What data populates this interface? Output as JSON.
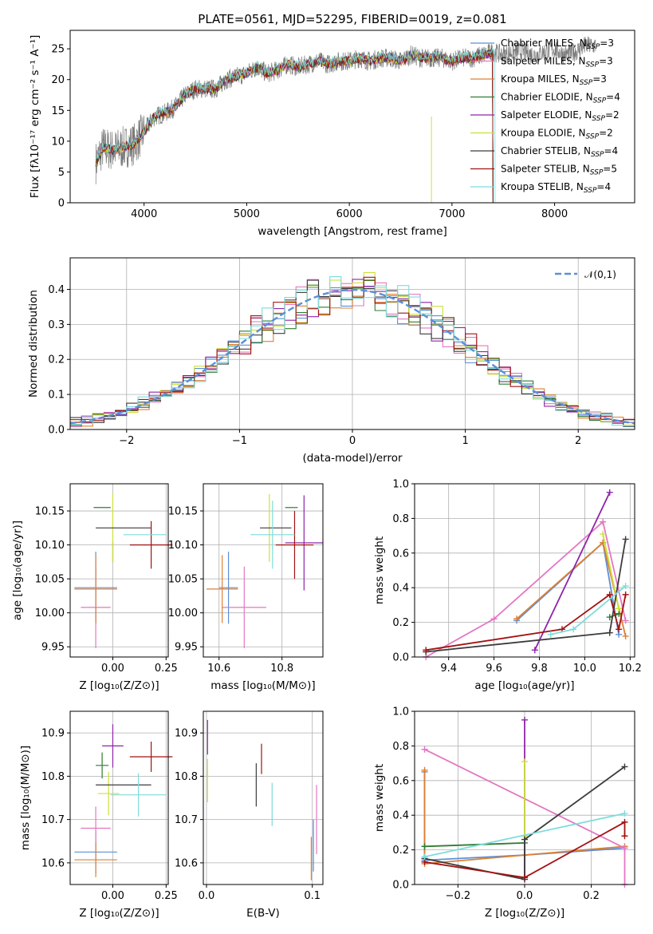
{
  "chart_data": [
    {
      "type": "line",
      "title": "PLATE=0561, MJD=52295, FIBERID=0019, z=0.081",
      "xlabel": "wavelength [Angstrom, rest frame]",
      "ylabel": "Flux [fλ10⁻¹⁷ erg cm⁻² s⁻¹ A⁻¹]",
      "xlim": [
        3280,
        8780
      ],
      "ylim": [
        0,
        28
      ],
      "xticks": [
        4000,
        5000,
        6000,
        7000,
        8000
      ],
      "yticks": [
        0,
        5,
        10,
        15,
        20,
        25
      ],
      "grid": false,
      "legend_position": "upper-right",
      "spectrum": {
        "x": [
          3530,
          3600,
          3700,
          3800,
          3900,
          4000,
          4100,
          4200,
          4300,
          4400,
          4500,
          4600,
          4700,
          4800,
          4900,
          5000,
          5100,
          5200,
          5300,
          5400,
          5500,
          5600,
          5700,
          5800,
          5900,
          6000,
          6100,
          6200,
          6300,
          6400,
          6500,
          6600,
          6700,
          6800,
          6900,
          7000,
          7100,
          7200,
          7300,
          7400,
          7500,
          7600,
          7700,
          7800,
          7900,
          8000,
          8100,
          8200,
          8300,
          8400
        ],
        "y": [
          6.5,
          9.0,
          8.5,
          9.0,
          9.5,
          11.5,
          14.0,
          14.5,
          15.5,
          17.5,
          18.5,
          18.5,
          18.5,
          20.0,
          20.5,
          21.0,
          22.0,
          21.0,
          21.5,
          22.5,
          22.0,
          22.5,
          23.0,
          22.5,
          23.0,
          23.0,
          23.5,
          23.0,
          23.5,
          23.5,
          23.0,
          24.0,
          23.5,
          23.5,
          23.5,
          23.0,
          23.5,
          23.5,
          24.0,
          24.5,
          24.0,
          24.5,
          24.5,
          24.0,
          24.5,
          25.0,
          24.0,
          24.5,
          25.5,
          25.5
        ]
      },
      "series": [
        {
          "name": "Chabrier MILES",
          "n_ssp": 3,
          "color": "#5b8fd8"
        },
        {
          "name": "Salpeter MILES",
          "n_ssp": 3,
          "color": "#e377c2"
        },
        {
          "name": "Kroupa MILES",
          "n_ssp": 3,
          "color": "#dd8033"
        },
        {
          "name": "Chabrier ELODIE",
          "n_ssp": 4,
          "color": "#2e7d32"
        },
        {
          "name": "Salpeter ELODIE",
          "n_ssp": 2,
          "color": "#8e24aa"
        },
        {
          "name": "Kroupa ELODIE",
          "n_ssp": 2,
          "color": "#cde03a"
        },
        {
          "name": "Chabrier STELIB",
          "n_ssp": 4,
          "color": "#3c3c3c"
        },
        {
          "name": "Salpeter STELIB",
          "n_ssp": 5,
          "color": "#a31212"
        },
        {
          "name": "Kroupa STELIB",
          "n_ssp": 4,
          "color": "#7fdcdc"
        }
      ],
      "legend_template": {
        "prefix": ", N",
        "sub": "SSP",
        "eq": "="
      }
    },
    {
      "type": "line",
      "xlabel": "(data-model)/error",
      "ylabel": "Normed distribution",
      "xlim": [
        -2.5,
        2.5
      ],
      "ylim": [
        0,
        0.49
      ],
      "xticks": [
        -2,
        -1,
        0,
        1,
        2
      ],
      "yticks": [
        0.0,
        0.1,
        0.2,
        0.3,
        0.4
      ],
      "grid": true,
      "legend_position": "upper-right",
      "reference_curve": {
        "name": "𝒩(0,1)",
        "mean": 0,
        "sigma": 1,
        "color": "#5b8fd8",
        "style": "dashed"
      }
    },
    {
      "type": "scatter",
      "xlabel": "Z [log₁₀(Z/Z⊙)]",
      "ylabel": "age  [log₁₀(age/yr)]",
      "xlim": [
        -0.2,
        0.26
      ],
      "ylim": [
        9.935,
        10.19
      ],
      "xticks": [
        0.0,
        0.25
      ],
      "yticks": [
        9.95,
        10.0,
        10.05,
        10.1,
        10.15
      ],
      "grid": true,
      "points": [
        {
          "series": "Chabrier MILES",
          "x": -0.08,
          "xerr": 0.1,
          "y": 10.037,
          "yerr": 0.053
        },
        {
          "series": "Salpeter MILES",
          "x": -0.08,
          "xerr": 0.07,
          "y": 10.008,
          "yerr": 0.06
        },
        {
          "series": "Kroupa MILES",
          "x": -0.08,
          "xerr": 0.1,
          "y": 10.035,
          "yerr": 0.05
        },
        {
          "series": "Chabrier ELODIE",
          "x": -0.05,
          "xerr": 0.04,
          "y": 10.155,
          "yerr": 0.0
        },
        {
          "series": "Salpeter ELODIE",
          "x": 0.0,
          "xerr": 0.0,
          "y": 10.09,
          "yerr": 0.015
        },
        {
          "series": "Kroupa ELODIE",
          "x": 0.0,
          "xerr": 0.0,
          "y": 10.125,
          "yerr": 0.05
        },
        {
          "series": "Chabrier STELIB",
          "x": 0.05,
          "xerr": 0.13,
          "y": 10.125,
          "yerr": 0.0
        },
        {
          "series": "Salpeter STELIB",
          "x": 0.18,
          "xerr": 0.1,
          "y": 10.1,
          "yerr": 0.035
        },
        {
          "series": "Kroupa STELIB",
          "x": 0.15,
          "xerr": 0.1,
          "y": 10.115,
          "yerr": 0.0
        }
      ]
    },
    {
      "type": "scatter",
      "xlabel": "mass [log₁₀(M/M⊙)]",
      "ylabel": "",
      "xlim": [
        10.55,
        10.93
      ],
      "ylim": [
        9.935,
        10.19
      ],
      "xticks": [
        10.6,
        10.8
      ],
      "yticks": [
        9.95,
        10.0,
        10.05,
        10.1,
        10.15
      ],
      "grid": true,
      "points": [
        {
          "series": "Chabrier MILES",
          "x": 10.63,
          "xerr": 0.03,
          "y": 10.037,
          "yerr": 0.053
        },
        {
          "series": "Salpeter MILES",
          "x": 10.68,
          "xerr": 0.07,
          "y": 10.008,
          "yerr": 0.06
        },
        {
          "series": "Kroupa MILES",
          "x": 10.61,
          "xerr": 0.05,
          "y": 10.035,
          "yerr": 0.05
        },
        {
          "series": "Chabrier ELODIE",
          "x": 10.83,
          "xerr": 0.02,
          "y": 10.155,
          "yerr": 0.0
        },
        {
          "series": "Salpeter ELODIE",
          "x": 10.87,
          "xerr": 0.06,
          "y": 10.103,
          "yerr": 0.07
        },
        {
          "series": "Kroupa ELODIE",
          "x": 10.76,
          "xerr": 0.0,
          "y": 10.125,
          "yerr": 0.05
        },
        {
          "series": "Chabrier STELIB",
          "x": 10.78,
          "xerr": 0.05,
          "y": 10.125,
          "yerr": 0.0
        },
        {
          "series": "Salpeter STELIB",
          "x": 10.84,
          "xerr": 0.06,
          "y": 10.1,
          "yerr": 0.05
        },
        {
          "series": "Kroupa STELIB",
          "x": 10.77,
          "xerr": 0.07,
          "y": 10.115,
          "yerr": 0.05
        }
      ]
    },
    {
      "type": "line",
      "xlabel": "age  [log₁₀(age/yr)]",
      "ylabel": "mass weight",
      "xlim": [
        9.25,
        10.22
      ],
      "ylim": [
        0.0,
        1.0
      ],
      "xticks": [
        9.4,
        9.6,
        9.8,
        10.0,
        10.2
      ],
      "yticks": [
        0.0,
        0.2,
        0.4,
        0.6,
        0.8,
        1.0
      ],
      "grid": true,
      "series": [
        {
          "name": "Chabrier MILES",
          "x": [
            9.7,
            10.08,
            10.15
          ],
          "y": [
            0.21,
            0.66,
            0.13
          ]
        },
        {
          "name": "Kroupa MILES",
          "x": [
            9.7,
            10.08,
            10.18
          ],
          "y": [
            0.22,
            0.66,
            0.12
          ]
        },
        {
          "name": "Salpeter MILES",
          "x": [
            9.3,
            9.6,
            10.08,
            10.18
          ],
          "y": [
            0.0,
            0.22,
            0.78,
            0.21
          ]
        },
        {
          "name": "Chabrier ELODIE",
          "x": [
            10.11,
            10.15
          ],
          "y": [
            0.23,
            0.25
          ]
        },
        {
          "name": "Salpeter ELODIE",
          "x": [
            9.78,
            10.11
          ],
          "y": [
            0.04,
            0.95
          ]
        },
        {
          "name": "Kroupa ELODIE",
          "x": [
            10.08,
            10.15
          ],
          "y": [
            0.71,
            0.28
          ]
        },
        {
          "name": "Chabrier STELIB",
          "x": [
            9.3,
            10.11,
            10.18
          ],
          "y": [
            0.03,
            0.14,
            0.68
          ]
        },
        {
          "name": "Salpeter STELIB",
          "x": [
            9.3,
            9.9,
            10.11,
            10.15,
            10.18
          ],
          "y": [
            0.04,
            0.16,
            0.36,
            0.16,
            0.36
          ]
        },
        {
          "name": "Kroupa STELIB",
          "x": [
            9.85,
            9.95,
            10.18
          ],
          "y": [
            0.13,
            0.16,
            0.41
          ]
        }
      ]
    },
    {
      "type": "scatter",
      "xlabel": "Z [log₁₀(Z/Z⊙)]",
      "ylabel": "mass [log₁₀(M/M⊙)]",
      "xlim": [
        -0.2,
        0.26
      ],
      "ylim": [
        10.55,
        10.95
      ],
      "xticks": [
        0.0,
        0.25
      ],
      "yticks": [
        10.6,
        10.7,
        10.8,
        10.9
      ],
      "grid": true,
      "points": [
        {
          "series": "Chabrier MILES",
          "x": -0.08,
          "xerr": 0.1,
          "y": 10.625,
          "yerr": 0.05
        },
        {
          "series": "Salpeter MILES",
          "x": -0.08,
          "xerr": 0.07,
          "y": 10.68,
          "yerr": 0.05
        },
        {
          "series": "Kroupa MILES",
          "x": -0.08,
          "xerr": 0.1,
          "y": 10.607,
          "yerr": 0.04
        },
        {
          "series": "Chabrier ELODIE",
          "x": -0.05,
          "xerr": 0.03,
          "y": 10.825,
          "yerr": 0.03
        },
        {
          "series": "Salpeter ELODIE",
          "x": 0.0,
          "xerr": 0.05,
          "y": 10.87,
          "yerr": 0.05
        },
        {
          "series": "Kroupa ELODIE",
          "x": -0.02,
          "xerr": 0.05,
          "y": 10.76,
          "yerr": 0.05
        },
        {
          "series": "Chabrier STELIB",
          "x": 0.05,
          "xerr": 0.13,
          "y": 10.78,
          "yerr": 0.0
        },
        {
          "series": "Salpeter STELIB",
          "x": 0.18,
          "xerr": 0.1,
          "y": 10.845,
          "yerr": 0.035
        },
        {
          "series": "Kroupa STELIB",
          "x": 0.12,
          "xerr": 0.13,
          "y": 10.757,
          "yerr": 0.05
        }
      ]
    },
    {
      "type": "scatter",
      "xlabel": "E(B-V)",
      "ylabel": "",
      "xlim": [
        -0.003,
        0.11
      ],
      "ylim": [
        10.55,
        10.95
      ],
      "xticks": [
        0.0,
        0.1
      ],
      "yticks": [
        10.6,
        10.7,
        10.8,
        10.9
      ],
      "grid": true,
      "points": [
        {
          "series": "Salpeter ELODIE",
          "x": 0.001,
          "y": 10.89,
          "yerr": 0.04
        },
        {
          "series": "Kroupa ELODIE",
          "x": 0.001,
          "y": 10.79,
          "yerr": 0.05
        },
        {
          "series": "Chabrier STELIB",
          "x": 0.047,
          "y": 10.78,
          "yerr": 0.05
        },
        {
          "series": "Salpeter STELIB",
          "x": 0.052,
          "y": 10.84,
          "yerr": 0.035
        },
        {
          "series": "Kroupa STELIB",
          "x": 0.062,
          "y": 10.735,
          "yerr": 0.05
        },
        {
          "series": "Chabrier MILES",
          "x": 0.101,
          "y": 10.64,
          "yerr": 0.06
        },
        {
          "series": "Salpeter MILES",
          "x": 0.104,
          "y": 10.7,
          "yerr": 0.08
        },
        {
          "series": "Kroupa MILES",
          "x": 0.099,
          "y": 10.61,
          "yerr": 0.05
        }
      ]
    },
    {
      "type": "line",
      "xlabel": "Z [log₁₀(Z/Z⊙)]",
      "ylabel": "mass weight",
      "xlim": [
        -0.33,
        0.33
      ],
      "ylim": [
        0.0,
        1.0
      ],
      "xticks": [
        -0.2,
        0.0,
        0.2
      ],
      "yticks": [
        0.0,
        0.2,
        0.4,
        0.6,
        0.8,
        1.0
      ],
      "grid": true,
      "series": [
        {
          "name": "Chabrier MILES",
          "x": [
            -0.3,
            -0.3,
            0.0,
            0.3
          ],
          "y": [
            0.65,
            0.14,
            0.17,
            0.21
          ]
        },
        {
          "name": "Kroupa MILES",
          "x": [
            -0.3,
            -0.3,
            0.0,
            0.3
          ],
          "y": [
            0.66,
            0.12,
            0.17,
            0.22
          ]
        },
        {
          "name": "Salpeter MILES",
          "x": [
            -0.3,
            0.3,
            0.3
          ],
          "y": [
            0.78,
            0.21,
            0.0
          ]
        },
        {
          "name": "Chabrier ELODIE",
          "x": [
            -0.3,
            0.0
          ],
          "y": [
            0.22,
            0.24
          ]
        },
        {
          "name": "Salpeter ELODIE",
          "x": [
            0.0,
            0.0
          ],
          "y": [
            0.04,
            0.95
          ]
        },
        {
          "name": "Kroupa ELODIE",
          "x": [
            0.0,
            0.0
          ],
          "y": [
            0.28,
            0.71
          ]
        },
        {
          "name": "Chabrier STELIB",
          "x": [
            -0.3,
            0.0,
            0.0,
            0.3
          ],
          "y": [
            0.15,
            0.03,
            0.26,
            0.68
          ]
        },
        {
          "name": "Salpeter STELIB",
          "x": [
            -0.3,
            0.0,
            0.3,
            0.3
          ],
          "y": [
            0.13,
            0.04,
            0.36,
            0.28
          ]
        },
        {
          "name": "Kroupa STELIB",
          "x": [
            -0.3,
            0.3
          ],
          "y": [
            0.16,
            0.41
          ]
        }
      ]
    }
  ]
}
